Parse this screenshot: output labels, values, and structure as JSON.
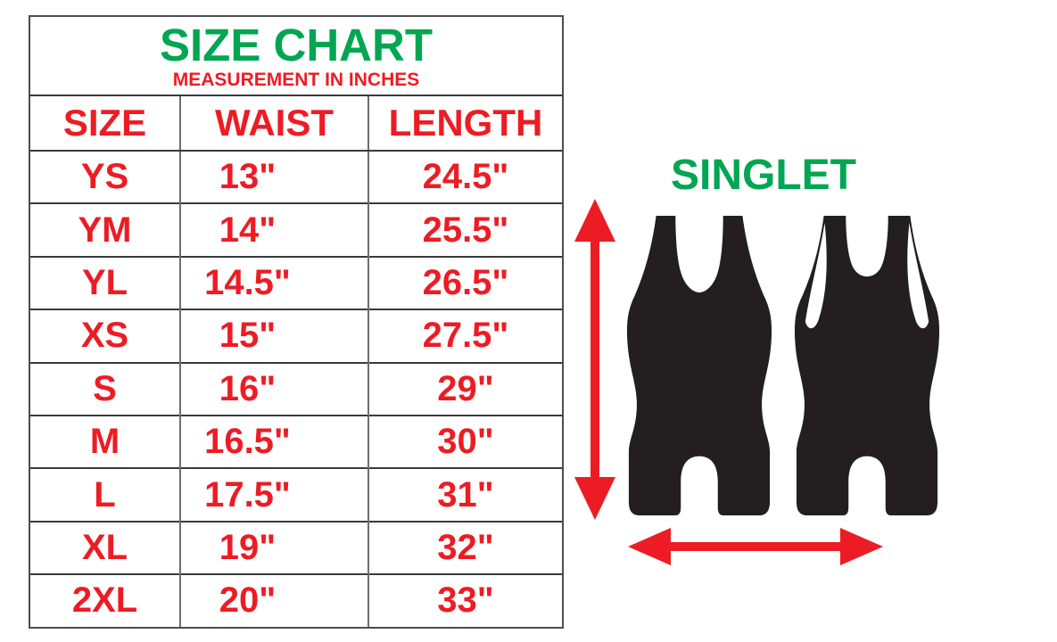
{
  "chart_data": {
    "type": "table",
    "title": "SIZE CHART",
    "subtitle": "MEASUREMENT IN INCHES",
    "units": "inches",
    "columns": [
      "SIZE",
      "WAIST",
      "LENGTH"
    ],
    "rows": [
      [
        "YS",
        "13\"",
        "24.5\""
      ],
      [
        "YM",
        "14\"",
        "25.5\""
      ],
      [
        "YL",
        "14.5\"",
        "26.5\""
      ],
      [
        "XS",
        "15\"",
        "27.5\""
      ],
      [
        "S",
        "16\"",
        "29\""
      ],
      [
        "M",
        "16.5\"",
        "30\""
      ],
      [
        "L",
        "17.5\"",
        "31\""
      ],
      [
        "XL",
        "19\"",
        "32\""
      ],
      [
        "2XL",
        "20\"",
        "33\""
      ]
    ]
  },
  "illustration": {
    "label": "SINGLET",
    "views": [
      "front",
      "back"
    ],
    "length_arrow": "vertical-double-arrow",
    "waist_arrow": "horizontal-double-arrow"
  },
  "colors": {
    "red": "#ed1c24",
    "green": "#00a651",
    "garment_black": "#231f20",
    "border_dark": "#3a3a3a",
    "border_light": "#6e6e6e"
  }
}
